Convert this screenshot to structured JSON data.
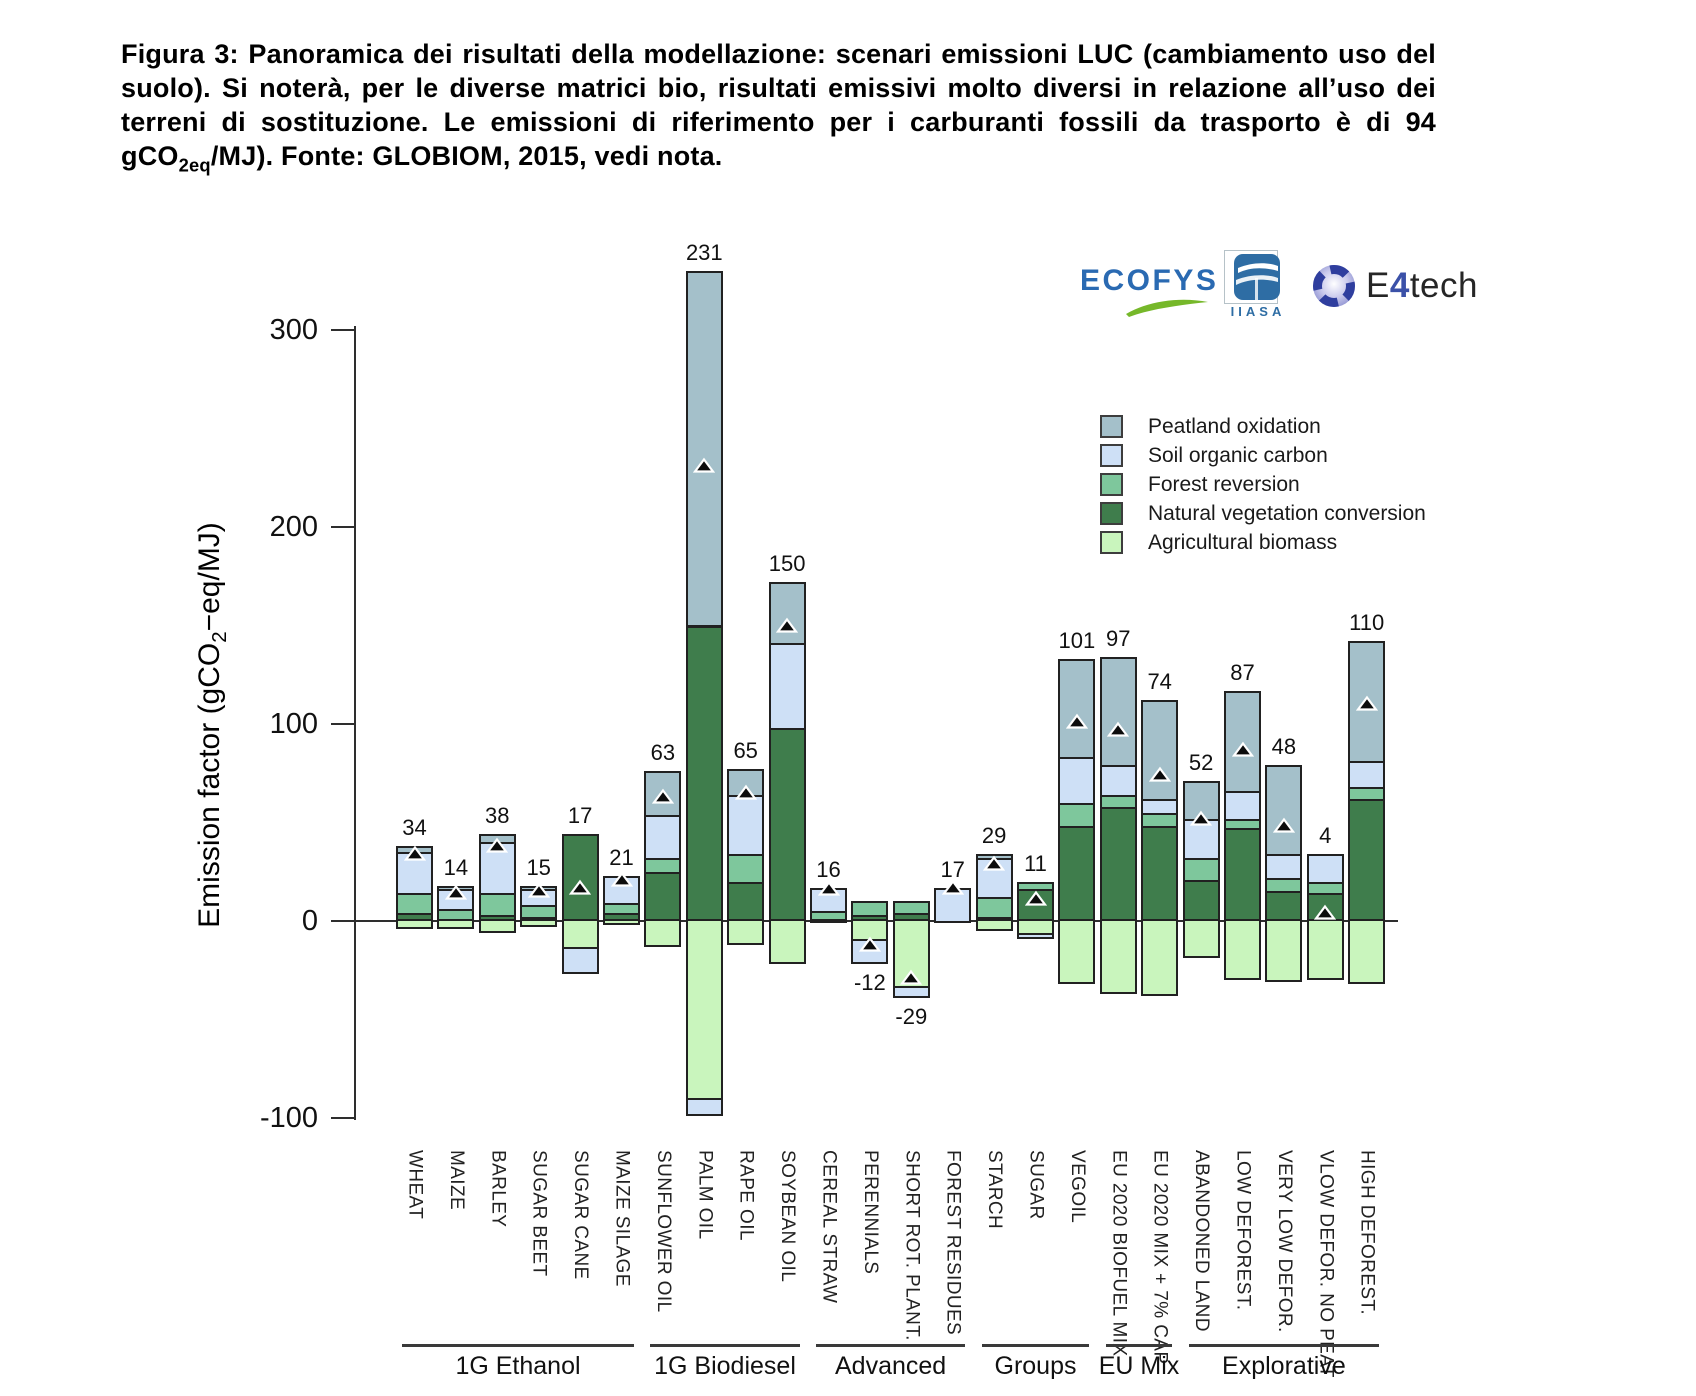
{
  "title": {
    "text_before_sub": "Figura 3: Panoramica dei risultati della modellazione: scenari emissioni LUC (cambiamento uso del suolo). Si noterà, per le diverse matrici bio, risultati emissivi molto diversi in relazione all’uso dei terreni di sostituzione. Le emissioni di riferimento per i carburanti fossili da trasporto è di 94 gCO",
    "subscript": "2eq",
    "text_after_sub": "/MJ). Fonte: GLOBIOM, 2015, vedi nota."
  },
  "logos": {
    "ecofys_text": "ECOFYS",
    "iiasa_text": "IIASA",
    "e4tech_e": "E",
    "e4tech_4": "4",
    "e4tech_tech": "tech",
    "ecofys_color": "#2a6ab2",
    "ecofys_swoosh_color": "#76b82a",
    "iiasa_color": "#2e6da4",
    "e4tech_accent": "#3b51a8"
  },
  "chart_data": {
    "type": "bar",
    "stacked": true,
    "ylabel_before_sub": "Emission factor (gCO",
    "ylabel_sub": "2",
    "ylabel_after_sub": "−eq/MJ)",
    "yticks": [
      300,
      200,
      100,
      0,
      -100
    ],
    "ylim": [
      -100,
      335
    ],
    "grid": false,
    "legend_position": "upper right",
    "marker_meaning": "black triangle = net total LUC emission factor",
    "legend": [
      {
        "key": "peatland_oxidation",
        "label": "Peatland oxidation",
        "color": "#a4c0ca"
      },
      {
        "key": "soil_organic_carbon",
        "label": "Soil organic carbon",
        "color": "#cee0f6"
      },
      {
        "key": "forest_reversion",
        "label": "Forest reversion",
        "color": "#7ec79c"
      },
      {
        "key": "natural_vegetation_conversion",
        "label": "Natural vegetation conversion",
        "color": "#3f7d4c"
      },
      {
        "key": "agricultural_biomass",
        "label": "Agricultural biomass",
        "color": "#c9f5bd"
      }
    ],
    "categories": [
      "WHEAT",
      "MAIZE",
      "BARLEY",
      "SUGAR BEET",
      "SUGAR CANE",
      "MAIZE SILAGE",
      "SUNFLOWER OIL",
      "PALM OIL",
      "RAPE OIL",
      "SOYBEAN OIL",
      "CEREAL STRAW",
      "PERENNIALS",
      "SHORT ROT. PLANT.",
      "FOREST RESIDUES",
      "STARCH",
      "SUGAR",
      "VEGOIL",
      "EU 2020 BIOFUEL MIX",
      "EU 2020 MIX + 7% CAP",
      "ABANDONED LAND",
      "LOW DEFOREST.",
      "VERY LOW DEFOR.",
      "VLOW DEFOR. NO PEAT",
      "HIGH DEFOREST."
    ],
    "groups": [
      {
        "label": "1G Ethanol",
        "from": 0,
        "to": 5
      },
      {
        "label": "1G Biodiesel",
        "from": 6,
        "to": 9
      },
      {
        "label": "Advanced",
        "from": 10,
        "to": 13
      },
      {
        "label": "Groups",
        "from": 14,
        "to": 16
      },
      {
        "label": "EU Mix",
        "from": 17,
        "to": 18
      },
      {
        "label": "Explorative",
        "from": 19,
        "to": 23
      }
    ],
    "bars": [
      {
        "category": "WHEAT",
        "total": 34,
        "segments": {
          "peatland_oxidation": 3,
          "soil_organic_carbon": 21,
          "forest_reversion": 10,
          "natural_vegetation_conversion": 4,
          "agricultural_biomass": -4
        }
      },
      {
        "category": "MAIZE",
        "total": 14,
        "segments": {
          "peatland_oxidation": 2,
          "soil_organic_carbon": 10,
          "forest_reversion": 6,
          "natural_vegetation_conversion": 0,
          "agricultural_biomass": -4
        }
      },
      {
        "category": "BARLEY",
        "total": 38,
        "segments": {
          "peatland_oxidation": 4,
          "soil_organic_carbon": 26,
          "forest_reversion": 11,
          "natural_vegetation_conversion": 3,
          "agricultural_biomass": -6
        }
      },
      {
        "category": "SUGAR BEET",
        "total": 15,
        "segments": {
          "peatland_oxidation": 2,
          "soil_organic_carbon": 8,
          "forest_reversion": 6,
          "natural_vegetation_conversion": 2,
          "agricultural_biomass": -3
        }
      },
      {
        "category": "SUGAR CANE",
        "total": 17,
        "segments": {
          "peatland_oxidation": 0,
          "soil_organic_carbon": -13,
          "forest_reversion": 0,
          "natural_vegetation_conversion": 44,
          "agricultural_biomass": -14
        }
      },
      {
        "category": "MAIZE SILAGE",
        "total": 21,
        "segments": {
          "peatland_oxidation": 0,
          "soil_organic_carbon": 14,
          "forest_reversion": 5,
          "natural_vegetation_conversion": 4,
          "agricultural_biomass": -2
        }
      },
      {
        "category": "SUNFLOWER OIL",
        "total": 63,
        "segments": {
          "peatland_oxidation": 22,
          "soil_organic_carbon": 22,
          "forest_reversion": 7,
          "natural_vegetation_conversion": 25,
          "agricultural_biomass": -13
        }
      },
      {
        "category": "PALM OIL",
        "total": 231,
        "segments": {
          "peatland_oxidation": 180,
          "soil_organic_carbon": -8,
          "forest_reversion": 0,
          "natural_vegetation_conversion": 150,
          "agricultural_biomass": -91
        }
      },
      {
        "category": "RAPE OIL",
        "total": 65,
        "segments": {
          "peatland_oxidation": 13,
          "soil_organic_carbon": 30,
          "forest_reversion": 14,
          "natural_vegetation_conversion": 20,
          "agricultural_biomass": -12
        }
      },
      {
        "category": "SOYBEAN OIL",
        "total": 150,
        "segments": {
          "peatland_oxidation": 31,
          "soil_organic_carbon": 43,
          "forest_reversion": 0,
          "natural_vegetation_conversion": 98,
          "agricultural_biomass": -22
        }
      },
      {
        "category": "CEREAL STRAW",
        "total": 16,
        "segments": {
          "peatland_oxidation": 0,
          "soil_organic_carbon": 12,
          "forest_reversion": 4,
          "natural_vegetation_conversion": 1,
          "agricultural_biomass": -1
        }
      },
      {
        "category": "PERENNIALS",
        "total": -12,
        "segments": {
          "peatland_oxidation": 0,
          "soil_organic_carbon": -12,
          "forest_reversion": 7,
          "natural_vegetation_conversion": 3,
          "agricultural_biomass": -10
        }
      },
      {
        "category": "SHORT ROT. PLANT.",
        "total": -29,
        "segments": {
          "peatland_oxidation": 0,
          "soil_organic_carbon": -5,
          "forest_reversion": 6,
          "natural_vegetation_conversion": 4,
          "agricultural_biomass": -34
        }
      },
      {
        "category": "FOREST RESIDUES",
        "total": 17,
        "segments": {
          "peatland_oxidation": 0,
          "soil_organic_carbon": 17,
          "forest_reversion": 0,
          "natural_vegetation_conversion": 0,
          "agricultural_biomass": 0
        }
      },
      {
        "category": "STARCH",
        "total": 29,
        "segments": {
          "peatland_oxidation": 2,
          "soil_organic_carbon": 20,
          "forest_reversion": 10,
          "natural_vegetation_conversion": 2,
          "agricultural_biomass": -5
        }
      },
      {
        "category": "SUGAR",
        "total": 11,
        "segments": {
          "peatland_oxidation": 0,
          "soil_organic_carbon": -2,
          "forest_reversion": 4,
          "natural_vegetation_conversion": 16,
          "agricultural_biomass": -7
        }
      },
      {
        "category": "VEGOIL",
        "total": 101,
        "segments": {
          "peatland_oxidation": 50,
          "soil_organic_carbon": 23,
          "forest_reversion": 12,
          "natural_vegetation_conversion": 48,
          "agricultural_biomass": -32
        }
      },
      {
        "category": "EU 2020 BIOFUEL MIX",
        "total": 97,
        "segments": {
          "peatland_oxidation": 55,
          "soil_organic_carbon": 15,
          "forest_reversion": 6,
          "natural_vegetation_conversion": 58,
          "agricultural_biomass": -37
        }
      },
      {
        "category": "EU 2020 MIX + 7% CAP",
        "total": 74,
        "segments": {
          "peatland_oxidation": 50,
          "soil_organic_carbon": 7,
          "forest_reversion": 7,
          "natural_vegetation_conversion": 48,
          "agricultural_biomass": -38
        }
      },
      {
        "category": "ABANDONED LAND",
        "total": 52,
        "segments": {
          "peatland_oxidation": 19,
          "soil_organic_carbon": 20,
          "forest_reversion": 11,
          "natural_vegetation_conversion": 21,
          "agricultural_biomass": -19
        }
      },
      {
        "category": "LOW DEFOREST.",
        "total": 87,
        "segments": {
          "peatland_oxidation": 51,
          "soil_organic_carbon": 14,
          "forest_reversion": 5,
          "natural_vegetation_conversion": 47,
          "agricultural_biomass": -30
        }
      },
      {
        "category": "VERY LOW DEFOR.",
        "total": 48,
        "segments": {
          "peatland_oxidation": 45,
          "soil_organic_carbon": 12,
          "forest_reversion": 7,
          "natural_vegetation_conversion": 15,
          "agricultural_biomass": -31
        }
      },
      {
        "category": "VLOW DEFOR. NO PEAT",
        "total": 4,
        "segments": {
          "peatland_oxidation": 0,
          "soil_organic_carbon": 14,
          "forest_reversion": 6,
          "natural_vegetation_conversion": 14,
          "agricultural_biomass": -30
        }
      },
      {
        "category": "HIGH DEFOREST.",
        "total": 110,
        "segments": {
          "peatland_oxidation": 61,
          "soil_organic_carbon": 13,
          "forest_reversion": 6,
          "natural_vegetation_conversion": 62,
          "agricultural_biomass": -32
        }
      }
    ]
  }
}
